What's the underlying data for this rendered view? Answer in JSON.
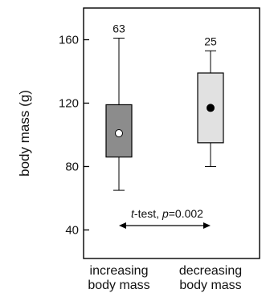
{
  "chart_data": {
    "type": "boxplot",
    "title": "",
    "xlabel": "",
    "ylabel": "body mass (g)",
    "ylim": [
      22,
      180
    ],
    "yticks": [
      40,
      80,
      120,
      160
    ],
    "grid": false,
    "legend": "none",
    "categories": [
      {
        "line1": "increasing",
        "line2": "body mass"
      },
      {
        "line1": "decreasing",
        "line2": "body mass"
      }
    ],
    "series": [
      {
        "n_label": "63",
        "whisker_low": 65,
        "q1": 86,
        "median": 101,
        "q3": 119,
        "whisker_high": 161,
        "box_color": "#8c8c8c",
        "marker": "open circle"
      },
      {
        "n_label": "25",
        "whisker_low": 80,
        "q1": 95,
        "median": 117,
        "q3": 139,
        "whisker_high": 153,
        "box_color": "#e1e1e1",
        "marker": "filled circle"
      }
    ],
    "annotation": {
      "italic_part": "t",
      "mid_text": "-test, ",
      "p_italic": "p",
      "p_value": "=0.002"
    }
  }
}
